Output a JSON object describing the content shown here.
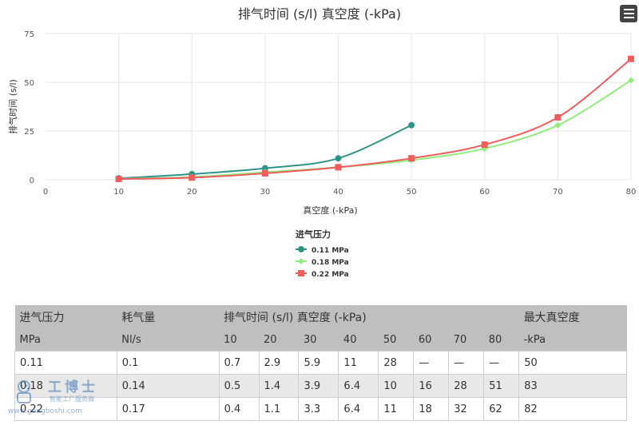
{
  "chart_data": {
    "type": "line",
    "title": "排气时间 (s/l) 真空度 (-kPa)",
    "xlabel": "真空度 (-kPa)",
    "ylabel": "排气时间 (s/l)",
    "xlim": [
      0,
      80
    ],
    "ylim": [
      0,
      75
    ],
    "x_ticks": [
      0,
      10,
      20,
      30,
      40,
      50,
      60,
      70,
      80
    ],
    "y_ticks": [
      0,
      25,
      50,
      75
    ],
    "legend_title": "进气压力",
    "legend_position": "bottom",
    "grid": true,
    "series": [
      {
        "name": "0.11 MPa",
        "color": "#2e9488",
        "marker": "circle",
        "x": [
          10,
          20,
          30,
          40,
          50
        ],
        "y": [
          0.7,
          2.9,
          5.9,
          11,
          28
        ]
      },
      {
        "name": "0.18 MPa",
        "color": "#90ed7d",
        "marker": "diamond",
        "x": [
          10,
          20,
          30,
          40,
          50,
          60,
          70,
          80
        ],
        "y": [
          0.5,
          1.4,
          3.9,
          6.4,
          10,
          16,
          28,
          51
        ]
      },
      {
        "name": "0.22 MPa",
        "color": "#f15c5c",
        "marker": "square",
        "x": [
          10,
          20,
          30,
          40,
          50,
          60,
          70,
          80
        ],
        "y": [
          0.4,
          1.1,
          3.3,
          6.4,
          11,
          18,
          32,
          62
        ]
      }
    ]
  },
  "table": {
    "header1": [
      "进气压力",
      "耗气量",
      "排气时间 (s/l) 真空度 (-kPa)",
      "最大真空度"
    ],
    "header2": [
      "MPa",
      "Nl/s",
      "10",
      "20",
      "30",
      "40",
      "50",
      "60",
      "70",
      "80",
      "-kPa"
    ],
    "rows": [
      [
        "0.11",
        "0.1",
        "0.7",
        "2.9",
        "5.9",
        "11",
        "28",
        "—",
        "—",
        "—",
        "50"
      ],
      [
        "0.18",
        "0.14",
        "0.5",
        "1.4",
        "3.9",
        "6.4",
        "10",
        "16",
        "28",
        "51",
        "83"
      ],
      [
        "0.22",
        "0.17",
        "0.4",
        "1.1",
        "3.3",
        "6.4",
        "11",
        "18",
        "32",
        "62",
        "82"
      ]
    ]
  },
  "watermark": {
    "brand": "工博士",
    "tagline": "智能工厂服务商",
    "url": "www.gongboshi.com"
  }
}
